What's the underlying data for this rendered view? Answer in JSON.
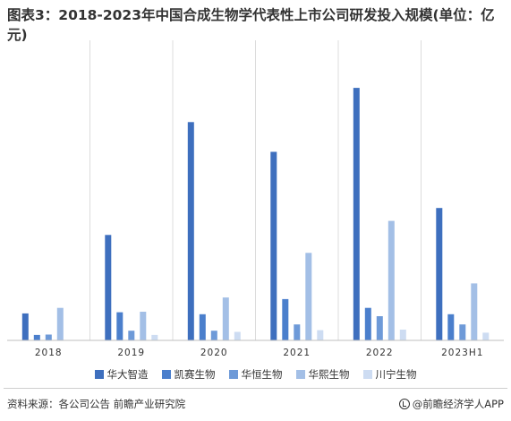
{
  "title": "图表3：2018-2023年中国合成生物学代表性上市公司研发投入规模(单位：亿元)",
  "chart_data": {
    "type": "bar",
    "categories": [
      "2018",
      "2019",
      "2020",
      "2021",
      "2022",
      "2023H1"
    ],
    "series": [
      {
        "name": "华大智造",
        "color": "#3e6fbe",
        "values": [
          0.98,
          3.83,
          7.93,
          6.85,
          9.17,
          4.81
        ]
      },
      {
        "name": "凯赛生物",
        "color": "#4b7fcc",
        "values": [
          0.2,
          1.02,
          0.95,
          1.5,
          1.18,
          0.95
        ]
      },
      {
        "name": "华恒生物",
        "color": "#6e9ad8",
        "values": [
          0.21,
          0.35,
          0.35,
          0.58,
          0.88,
          0.58
        ]
      },
      {
        "name": "华熙生物",
        "color": "#a3bfe6",
        "values": [
          1.18,
          1.04,
          1.56,
          3.18,
          4.34,
          2.07
        ]
      },
      {
        "name": "川宁生物",
        "color": "#cddcf2",
        "values": [
          0,
          0.2,
          0.31,
          0.37,
          0.39,
          0.28
        ]
      }
    ],
    "ylim": [
      0,
      9.5
    ],
    "grid": false,
    "legend_position": "bottom"
  },
  "footer": {
    "source": "资料来源：各公司公告 前瞻产业研究院",
    "brand": "@前瞻经济学人APP"
  }
}
